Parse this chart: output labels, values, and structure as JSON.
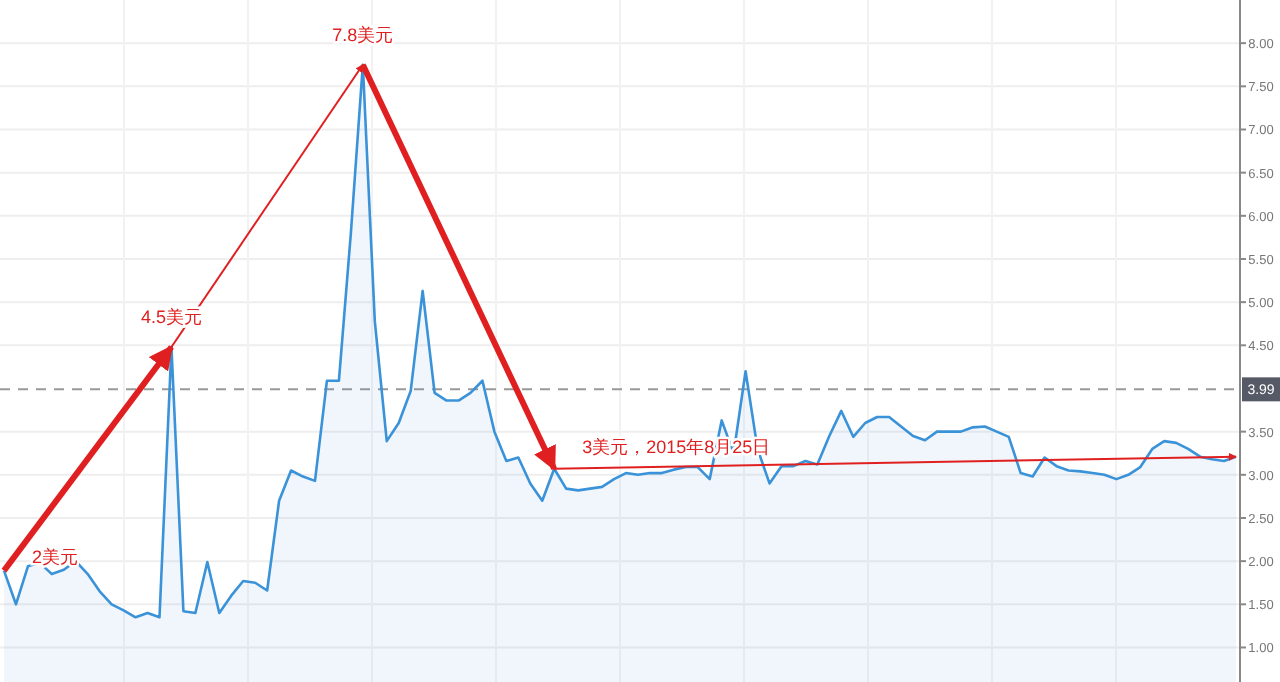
{
  "chart_data": {
    "type": "area",
    "tick_labels": "y",
    "grid": true,
    "ylim": [
      0.6,
      8.5
    ],
    "categories": [
      null,
      null,
      null,
      null,
      null,
      null,
      null,
      null,
      null,
      null,
      null,
      null,
      null,
      null,
      null,
      null,
      null,
      null,
      null,
      null,
      null,
      null,
      null,
      null,
      null,
      null,
      null,
      null,
      null,
      null,
      null,
      null,
      null,
      null,
      null,
      null,
      null,
      null,
      null,
      null,
      null,
      null,
      null,
      null,
      null,
      null,
      null,
      null,
      null,
      null,
      null,
      null,
      null,
      null,
      null,
      null,
      null,
      null,
      null,
      null,
      null,
      null,
      null,
      null,
      null,
      null,
      null,
      null,
      null,
      null,
      null,
      null,
      null,
      null,
      null,
      null,
      null,
      null,
      null,
      null,
      null,
      null,
      null,
      null,
      null,
      null,
      null,
      null,
      null,
      null,
      null,
      null,
      null,
      null,
      null,
      null,
      null,
      null,
      null,
      null,
      null,
      null,
      null,
      null
    ],
    "yticks": [
      {
        "value": 1,
        "label": "1.00"
      },
      {
        "value": 1.5,
        "label": "1.50"
      },
      {
        "value": 2,
        "label": "2.00"
      },
      {
        "value": 2.5,
        "label": "2.50"
      },
      {
        "value": 3,
        "label": "3.00"
      },
      {
        "value": 3.5,
        "label": "3.50"
      },
      {
        "value": 4.5,
        "label": "4.50"
      },
      {
        "value": 5,
        "label": "5.00"
      },
      {
        "value": 5.5,
        "label": "5.50"
      },
      {
        "value": 6,
        "label": "6.00"
      },
      {
        "value": 6.5,
        "label": "6.50"
      },
      {
        "value": 7,
        "label": "7.00"
      },
      {
        "value": 7.5,
        "label": "7.50"
      },
      {
        "value": 8,
        "label": "8.00"
      }
    ],
    "series": [
      {
        "color": "#3a92d8",
        "values": [
          1.89,
          1.5,
          1.94,
          1.98,
          1.85,
          1.9,
          2.0,
          1.85,
          1.65,
          1.5,
          1.43,
          1.35,
          1.4,
          1.35,
          4.48,
          1.42,
          1.4,
          1.99,
          1.4,
          1.6,
          1.77,
          1.75,
          1.66,
          2.7,
          3.05,
          2.98,
          2.93,
          4.09,
          4.09,
          5.8,
          7.75,
          4.78,
          3.39,
          3.6,
          3.97,
          5.13,
          3.95,
          3.86,
          3.86,
          3.95,
          4.09,
          3.5,
          3.16,
          3.2,
          2.9,
          2.7,
          3.07,
          2.84,
          2.82,
          2.84,
          2.86,
          2.95,
          3.02,
          3.0,
          3.02,
          3.02,
          3.06,
          3.09,
          3.09,
          2.95,
          3.63,
          3.25,
          4.2,
          3.3,
          2.9,
          3.1,
          3.1,
          3.16,
          3.12,
          3.45,
          3.74,
          3.44,
          3.6,
          3.67,
          3.67,
          3.56,
          3.45,
          3.4,
          3.5,
          3.5,
          3.5,
          3.55,
          3.56,
          3.5,
          3.44,
          3.02,
          2.98,
          3.2,
          3.1,
          3.05,
          3.04,
          3.02,
          3.0,
          2.95,
          3.0,
          3.09,
          3.3,
          3.39,
          3.37,
          3.3,
          3.21,
          3.18,
          3.16,
          3.21
        ]
      }
    ],
    "ref_lines": [
      {
        "axis": "y",
        "value": 3.99,
        "label": "3.99",
        "line_style": "dashed",
        "color": "#999999"
      }
    ],
    "annotations": [
      {
        "text": "2美元",
        "y": 1.89
      },
      {
        "text": "4.5美元",
        "y": 4.48
      },
      {
        "text": "7.8美元",
        "y": 7.75
      },
      {
        "text": "3美元，2015年8月25日",
        "y": 3.07
      }
    ]
  }
}
